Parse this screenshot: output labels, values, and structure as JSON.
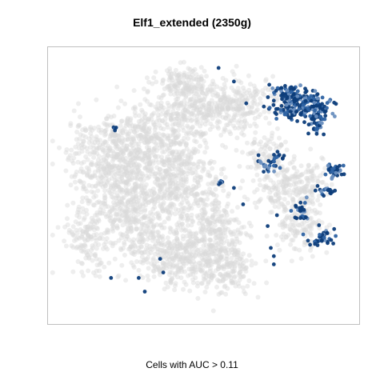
{
  "chart_data": {
    "type": "scatter",
    "title": "Elf1_extended (2350g)",
    "xlabel": "Cells with AUC > 0.11",
    "ylabel": "",
    "xlim": [
      0,
      100
    ],
    "ylim": [
      0,
      100
    ],
    "grid": false,
    "axes_ticks": false,
    "colors": {
      "background_cells": "#d9d9d9",
      "high_auc": "#0d3d7a",
      "mid_auc": "#2e63a3",
      "low_auc": "#6a8fbf",
      "frame": "#bfbfbf"
    },
    "background_regions": [
      {
        "cx": 32,
        "cy": 66,
        "rx": 17,
        "ry": 13,
        "n": 420
      },
      {
        "cx": 20,
        "cy": 58,
        "rx": 13,
        "ry": 14,
        "n": 380
      },
      {
        "cx": 42,
        "cy": 50,
        "rx": 14,
        "ry": 14,
        "n": 420
      },
      {
        "cx": 26,
        "cy": 38,
        "rx": 14,
        "ry": 13,
        "n": 360
      },
      {
        "cx": 40,
        "cy": 24,
        "rx": 14,
        "ry": 10,
        "n": 320
      },
      {
        "cx": 56,
        "cy": 20,
        "rx": 10,
        "ry": 9,
        "n": 240
      },
      {
        "cx": 54,
        "cy": 34,
        "rx": 9,
        "ry": 9,
        "n": 200
      },
      {
        "cx": 46,
        "cy": 78,
        "rx": 13,
        "ry": 9,
        "n": 260
      },
      {
        "cx": 60,
        "cy": 80,
        "rx": 10,
        "ry": 9,
        "n": 220
      },
      {
        "cx": 44,
        "cy": 88,
        "rx": 8,
        "ry": 5,
        "n": 120
      },
      {
        "cx": 78,
        "cy": 50,
        "rx": 10,
        "ry": 8,
        "n": 220
      },
      {
        "cx": 82,
        "cy": 36,
        "rx": 7,
        "ry": 9,
        "n": 140
      },
      {
        "cx": 70,
        "cy": 62,
        "rx": 7,
        "ry": 6,
        "n": 80
      },
      {
        "cx": 12,
        "cy": 30,
        "rx": 6,
        "ry": 10,
        "n": 110
      },
      {
        "cx": 78,
        "cy": 82,
        "rx": 5,
        "ry": 4,
        "n": 40
      }
    ],
    "highlight_regions": [
      {
        "cx": 82,
        "cy": 79,
        "rx": 9,
        "ry": 5,
        "n": 210
      },
      {
        "cx": 78,
        "cy": 84,
        "rx": 5,
        "ry": 3,
        "n": 60
      },
      {
        "cx": 87,
        "cy": 72,
        "rx": 3,
        "ry": 4,
        "n": 35
      },
      {
        "cx": 93,
        "cy": 55,
        "rx": 3,
        "ry": 2.5,
        "n": 35
      },
      {
        "cx": 90,
        "cy": 48,
        "rx": 3,
        "ry": 2,
        "n": 18
      },
      {
        "cx": 82,
        "cy": 40,
        "rx": 3,
        "ry": 4,
        "n": 28
      },
      {
        "cx": 89,
        "cy": 31,
        "rx": 4,
        "ry": 4,
        "n": 32
      },
      {
        "cx": 71,
        "cy": 57,
        "rx": 3,
        "ry": 3,
        "n": 20
      },
      {
        "cx": 75,
        "cy": 61,
        "rx": 2,
        "ry": 2,
        "n": 10
      },
      {
        "cx": 56,
        "cy": 51,
        "rx": 1.5,
        "ry": 1,
        "n": 6
      },
      {
        "cx": 22,
        "cy": 71,
        "rx": 1.5,
        "ry": 1,
        "n": 4
      }
    ],
    "highlight_points": [
      {
        "x": 55,
        "y": 93
      },
      {
        "x": 60,
        "y": 88
      },
      {
        "x": 64,
        "y": 80
      },
      {
        "x": 73,
        "y": 81
      },
      {
        "x": 68,
        "y": 61
      },
      {
        "x": 71,
        "y": 35
      },
      {
        "x": 74,
        "y": 39
      },
      {
        "x": 73,
        "y": 24
      },
      {
        "x": 73,
        "y": 21
      },
      {
        "x": 72,
        "y": 27
      },
      {
        "x": 36,
        "y": 23
      },
      {
        "x": 37,
        "y": 18
      },
      {
        "x": 29,
        "y": 16
      },
      {
        "x": 20,
        "y": 16
      },
      {
        "x": 31,
        "y": 11
      },
      {
        "x": 63,
        "y": 43
      },
      {
        "x": 60,
        "y": 49
      }
    ]
  }
}
